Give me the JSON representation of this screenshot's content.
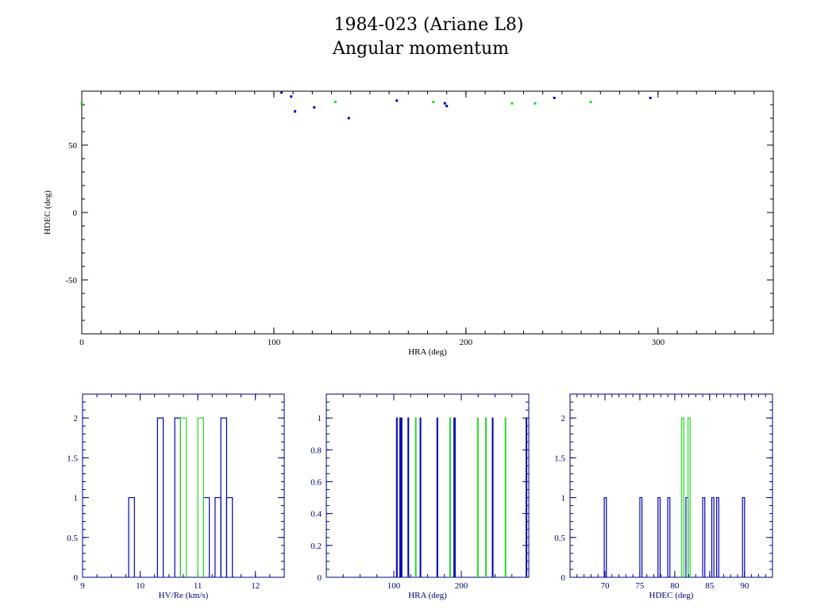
{
  "title": "1984-023 (Ariane L8)",
  "subtitle": "Angular momentum",
  "colors": {
    "series_a": "#0000cc",
    "series_b": "#22dd22",
    "frame_main": "#000000",
    "frame_hist": "#000080",
    "text_hist": "#000080"
  },
  "chart_data": [
    {
      "type": "scatter",
      "xlabel": "HRA (deg)",
      "ylabel": "HDEC (deg)",
      "xlim": [
        0,
        360
      ],
      "ylim": [
        -90,
        90
      ],
      "xticks": [
        0,
        100,
        200,
        300
      ],
      "yticks": [
        -50,
        0,
        50
      ],
      "grid": false,
      "series": [
        {
          "points": [
            [
              104,
              89
            ],
            [
              109,
              86
            ],
            [
              111,
              75
            ],
            [
              121,
              78
            ],
            [
              139,
              70
            ],
            [
              164,
              83
            ],
            [
              189,
              81
            ],
            [
              190,
              79
            ],
            [
              246,
              85
            ],
            [
              296,
              85
            ]
          ]
        },
        {
          "points": [
            [
              0,
              81
            ],
            [
              132,
              82
            ],
            [
              183,
              82
            ],
            [
              224,
              81
            ],
            [
              236,
              81
            ],
            [
              265,
              82
            ]
          ]
        }
      ]
    },
    {
      "type": "histogram",
      "xlabel": "HV/Re (km/s)",
      "ylabel": "",
      "xlim": [
        9,
        12.5
      ],
      "ylim": [
        0,
        2.3
      ],
      "xticks": [
        "9",
        "10",
        "11",
        "12"
      ],
      "yticks": [
        "0",
        "0.5",
        "1",
        "1.5",
        "2"
      ],
      "bin_width": 0.1,
      "series": [
        {
          "bin_starts": [
            9.8,
            10.3,
            10.6,
            11.1,
            11.3,
            11.4,
            11.5
          ],
          "counts": [
            1,
            2,
            2,
            1,
            1,
            2,
            1
          ]
        },
        {
          "bin_starts": [
            10.7,
            11.0
          ],
          "counts": [
            2,
            2
          ]
        }
      ]
    },
    {
      "type": "histogram",
      "xlabel": "HRA (deg)",
      "ylabel": "",
      "xlim": [
        0,
        300
      ],
      "ylim": [
        0,
        1.15
      ],
      "xticks": [
        "100",
        "200"
      ],
      "yticks": [
        "0",
        "0.2",
        "0.4",
        "0.6",
        "0.8",
        "1"
      ],
      "bin_width": 1,
      "series": [
        {
          "bin_starts": [
            104,
            109,
            111,
            121,
            139,
            164,
            189,
            190,
            246,
            296
          ],
          "counts": [
            1,
            1,
            1,
            1,
            1,
            1,
            1,
            1,
            1,
            1
          ]
        },
        {
          "bin_starts": [
            132,
            183,
            224,
            236,
            265
          ],
          "counts": [
            1,
            1,
            1,
            1,
            1
          ]
        }
      ]
    },
    {
      "type": "histogram",
      "xlabel": "HDEC (deg)",
      "ylabel": "",
      "xlim": [
        65,
        94
      ],
      "ylim": [
        0,
        2.3
      ],
      "xticks": [
        "70",
        "75",
        "80",
        "85",
        "90"
      ],
      "yticks": [
        "0",
        "0.5",
        "1",
        "1.5",
        "2"
      ],
      "bin_width": 0.3,
      "series": [
        {
          "bin_starts": [
            69.9,
            75.0,
            77.6,
            79.0,
            81.6,
            84.0,
            85.3,
            86.0,
            89.7
          ],
          "counts": [
            1,
            1,
            1,
            1,
            1,
            1,
            1,
            1,
            1
          ]
        },
        {
          "bin_starts": [
            81.0,
            81.9
          ],
          "counts": [
            2,
            2
          ]
        }
      ]
    }
  ]
}
